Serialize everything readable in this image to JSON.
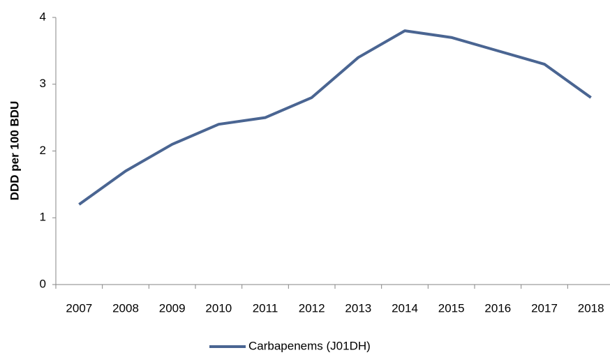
{
  "chart_data": {
    "type": "line",
    "y_label": "DDD per 100 BDU",
    "categories": [
      "2007",
      "2008",
      "2009",
      "2010",
      "2011",
      "2012",
      "2013",
      "2014",
      "2015",
      "2016",
      "2017",
      "2018"
    ],
    "series": [
      {
        "name": "Carbapenems (J01DH)",
        "color": "#4a6592",
        "values": [
          1.2,
          1.7,
          2.1,
          2.4,
          2.5,
          2.8,
          3.4,
          3.8,
          3.7,
          3.5,
          3.3,
          2.8
        ]
      }
    ],
    "ylim": [
      0,
      4
    ],
    "yticks": [
      0,
      1,
      2,
      3,
      4
    ],
    "grid": false,
    "legend": "bottom"
  }
}
